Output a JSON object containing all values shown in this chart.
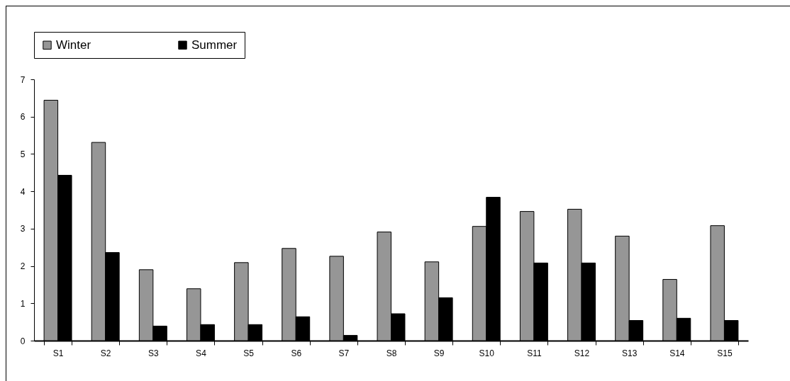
{
  "chart_data": {
    "type": "bar",
    "categories": [
      "S1",
      "S2",
      "S3",
      "S4",
      "S5",
      "S6",
      "S7",
      "S8",
      "S9",
      "S10",
      "S11",
      "S12",
      "S13",
      "S14",
      "S15"
    ],
    "series": [
      {
        "name": "Winter",
        "color": "#969696",
        "values": [
          6.44,
          5.31,
          1.9,
          1.39,
          2.09,
          2.47,
          2.26,
          2.91,
          2.11,
          3.06,
          3.46,
          3.52,
          2.8,
          1.64,
          3.08
        ]
      },
      {
        "name": "Summer",
        "color": "#000000",
        "values": [
          4.43,
          2.36,
          0.39,
          0.43,
          0.43,
          0.64,
          0.14,
          0.72,
          1.15,
          3.84,
          2.08,
          2.08,
          0.54,
          0.6,
          0.54
        ]
      }
    ],
    "ylim": [
      0,
      7
    ],
    "yticks": [
      0,
      1,
      2,
      3,
      4,
      5,
      6,
      7
    ],
    "grid": false,
    "legend": "top"
  }
}
